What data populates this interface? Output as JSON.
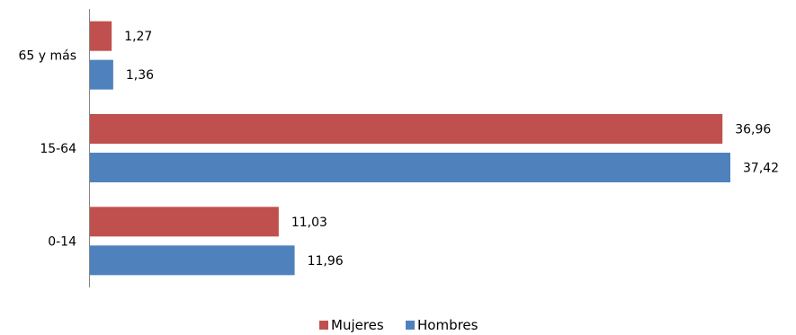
{
  "chart_data": {
    "type": "bar",
    "orientation": "horizontal",
    "categories": [
      "65 y más",
      "15-64",
      "0-14"
    ],
    "series": [
      {
        "name": "Mujeres",
        "color": "#C0504D",
        "values": [
          1.27,
          36.96,
          11.03
        ],
        "labels": [
          "1,27",
          "36,96",
          "11,03"
        ]
      },
      {
        "name": "Hombres",
        "color": "#4F81BD",
        "values": [
          1.36,
          37.42,
          11.96
        ],
        "labels": [
          "1,36",
          "37,42",
          "11,96"
        ]
      }
    ],
    "xlim": [
      0,
      37.42
    ],
    "grid": false,
    "legend_position": "bottom",
    "title": "",
    "xlabel": "",
    "ylabel": ""
  }
}
